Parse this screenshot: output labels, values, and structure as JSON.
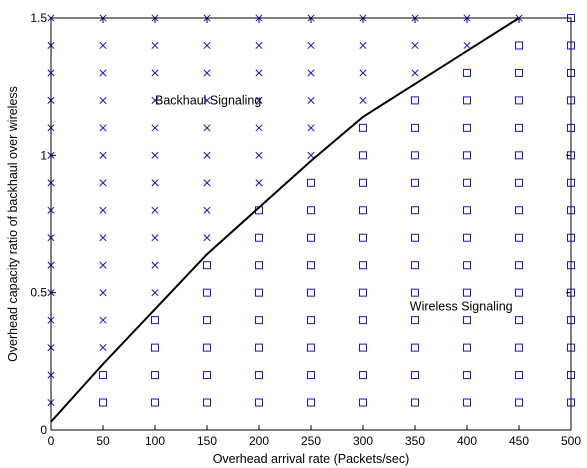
{
  "chart_data": {
    "type": "scatter",
    "title": "",
    "xlabel": "Overhead arrival rate (Packets/sec)",
    "ylabel": "Overhead capacity ratio of backhaul over wireless",
    "xlim": [
      0,
      500
    ],
    "ylim": [
      0,
      1.5
    ],
    "x_ticks": [
      0,
      50,
      100,
      150,
      200,
      250,
      300,
      350,
      400,
      450,
      500
    ],
    "y_ticks": [
      {
        "value": 0,
        "label": "0"
      },
      {
        "value": 0.5,
        "label": "0.5"
      },
      {
        "value": 1,
        "label": "1"
      },
      {
        "value": 1.5,
        "label": "1.5"
      }
    ],
    "grid": false,
    "marker_color": "#1515d0",
    "line_color": "#000000",
    "grid_x": [
      0,
      50,
      100,
      150,
      200,
      250,
      300,
      350,
      400,
      450,
      500
    ],
    "grid_y": [
      0.1,
      0.2,
      0.3,
      0.4,
      0.5,
      0.6,
      0.7,
      0.8,
      0.9,
      1.0,
      1.1,
      1.2,
      1.3,
      1.4,
      1.5
    ],
    "boundary": {
      "x": [
        0,
        50,
        100,
        150,
        200,
        250,
        300,
        350,
        400,
        450
      ],
      "y": [
        0.03,
        0.24,
        0.44,
        0.64,
        0.81,
        0.98,
        1.14,
        1.26,
        1.38,
        1.5
      ]
    },
    "series": [
      {
        "marker": "x",
        "region": "backhaul"
      },
      {
        "marker": "square",
        "region": "wireless"
      }
    ],
    "annotations": [
      {
        "text": "Backhaul Signaling",
        "x": 100,
        "y": 1.2
      },
      {
        "text": "Wireless Signaling",
        "x": 345,
        "y": 0.45
      }
    ]
  }
}
